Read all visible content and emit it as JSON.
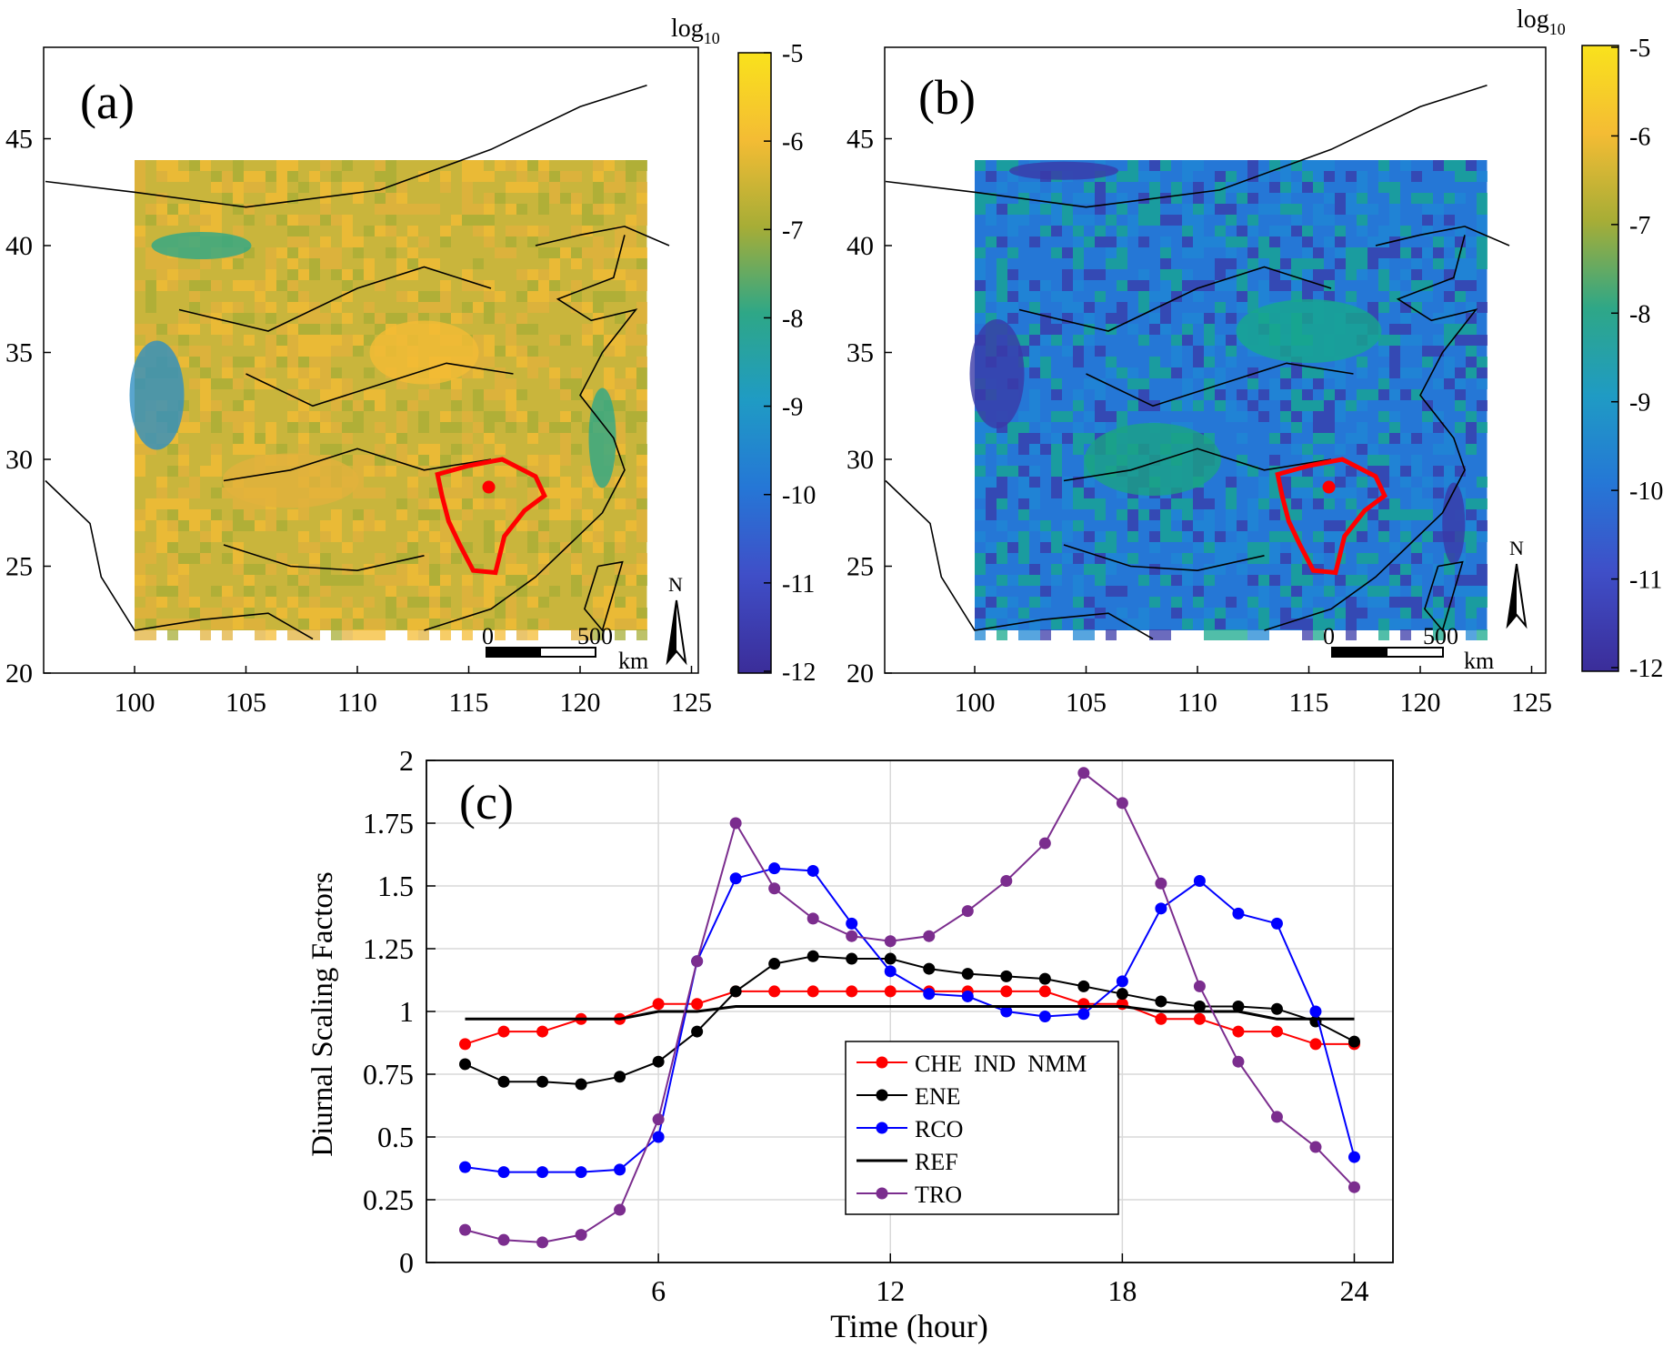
{
  "maps": [
    {
      "panel_label": "(a)",
      "colorbar": {
        "unit_label": "log",
        "unit_sub": "10",
        "ticks": [
          "-5",
          "-6",
          "-7",
          "-8",
          "-9",
          "-10",
          "-11",
          "-12"
        ]
      },
      "x_ticks": [
        "100",
        "105",
        "110",
        "115",
        "120",
        "125"
      ],
      "y_ticks": [
        "45",
        "40",
        "35",
        "30",
        "25",
        "20"
      ],
      "scalebar": {
        "start": "0",
        "end": "500",
        "unit": "km"
      },
      "north": "N",
      "palette": [
        "#c9b53c",
        "#e2b23c",
        "#f4bc34",
        "#a7ad36",
        "#2ea787",
        "#2f8fc2"
      ]
    },
    {
      "panel_label": "(b)",
      "colorbar": {
        "unit_label": "log",
        "unit_sub": "10",
        "ticks": [
          "-5",
          "-6",
          "-7",
          "-8",
          "-9",
          "-10",
          "-11",
          "-12"
        ]
      },
      "x_ticks": [
        "100",
        "105",
        "110",
        "115",
        "120",
        "125"
      ],
      "y_ticks": [
        "45",
        "40",
        "35",
        "30",
        "25",
        "20"
      ],
      "scalebar": {
        "start": "0",
        "end": "500",
        "unit": "km"
      },
      "north": "N",
      "palette": [
        "#2577d6",
        "#17a88c",
        "#1f87d4",
        "#3a3aa8",
        "#1aa285",
        "#4054c4"
      ]
    }
  ],
  "chart_data": {
    "type": "line",
    "panel_label": "(c)",
    "xlabel": "Time (hour)",
    "ylabel": "Diurnal Scaling Factors",
    "xlim": [
      0,
      25
    ],
    "ylim": [
      0,
      2
    ],
    "x_ticks": [
      6,
      12,
      18,
      24
    ],
    "y_ticks": [
      0,
      0.25,
      0.5,
      0.75,
      1,
      1.25,
      1.5,
      1.75,
      2
    ],
    "y_tick_labels": [
      "0",
      "0.25",
      "0.5",
      "0.75",
      "1",
      "1.25",
      "1.5",
      "1.75",
      "2"
    ],
    "grid": true,
    "legend_position": "center-bottom",
    "x": [
      1,
      2,
      3,
      4,
      5,
      6,
      7,
      8,
      9,
      10,
      11,
      12,
      13,
      14,
      15,
      16,
      17,
      18,
      19,
      20,
      21,
      22,
      23,
      24
    ],
    "series": [
      {
        "name": "CHE  IND  NMM",
        "color": "#ff0000",
        "markers": true,
        "values": [
          0.87,
          0.92,
          0.92,
          0.97,
          0.97,
          1.03,
          1.03,
          1.08,
          1.08,
          1.08,
          1.08,
          1.08,
          1.08,
          1.08,
          1.08,
          1.08,
          1.03,
          1.03,
          0.97,
          0.97,
          0.92,
          0.92,
          0.87,
          0.87
        ]
      },
      {
        "name": "ENE",
        "color": "#000000",
        "markers": true,
        "values": [
          0.79,
          0.72,
          0.72,
          0.71,
          0.74,
          0.8,
          0.92,
          1.08,
          1.19,
          1.22,
          1.21,
          1.21,
          1.17,
          1.15,
          1.14,
          1.13,
          1.1,
          1.07,
          1.04,
          1.02,
          1.02,
          1.01,
          0.96,
          0.88
        ]
      },
      {
        "name": "RCO",
        "color": "#0000ff",
        "markers": true,
        "values": [
          0.38,
          0.36,
          0.36,
          0.36,
          0.37,
          0.5,
          1.2,
          1.53,
          1.57,
          1.56,
          1.35,
          1.16,
          1.07,
          1.06,
          1.0,
          0.98,
          0.99,
          1.12,
          1.41,
          1.52,
          1.39,
          1.35,
          1.0,
          0.42
        ]
      },
      {
        "name": "REF",
        "color": "#000000",
        "markers": false,
        "values": [
          0.97,
          0.97,
          0.97,
          0.97,
          0.97,
          1.0,
          1.0,
          1.02,
          1.02,
          1.02,
          1.02,
          1.02,
          1.02,
          1.02,
          1.02,
          1.02,
          1.02,
          1.02,
          1.0,
          1.0,
          1.0,
          0.97,
          0.97,
          0.97
        ]
      },
      {
        "name": "TRO",
        "color": "#7b2d8e",
        "markers": true,
        "values": [
          0.13,
          0.09,
          0.08,
          0.11,
          0.21,
          0.57,
          1.2,
          1.75,
          1.49,
          1.37,
          1.3,
          1.28,
          1.3,
          1.4,
          1.52,
          1.67,
          1.95,
          1.83,
          1.51,
          1.1,
          0.8,
          0.58,
          0.46,
          0.3
        ]
      }
    ]
  }
}
